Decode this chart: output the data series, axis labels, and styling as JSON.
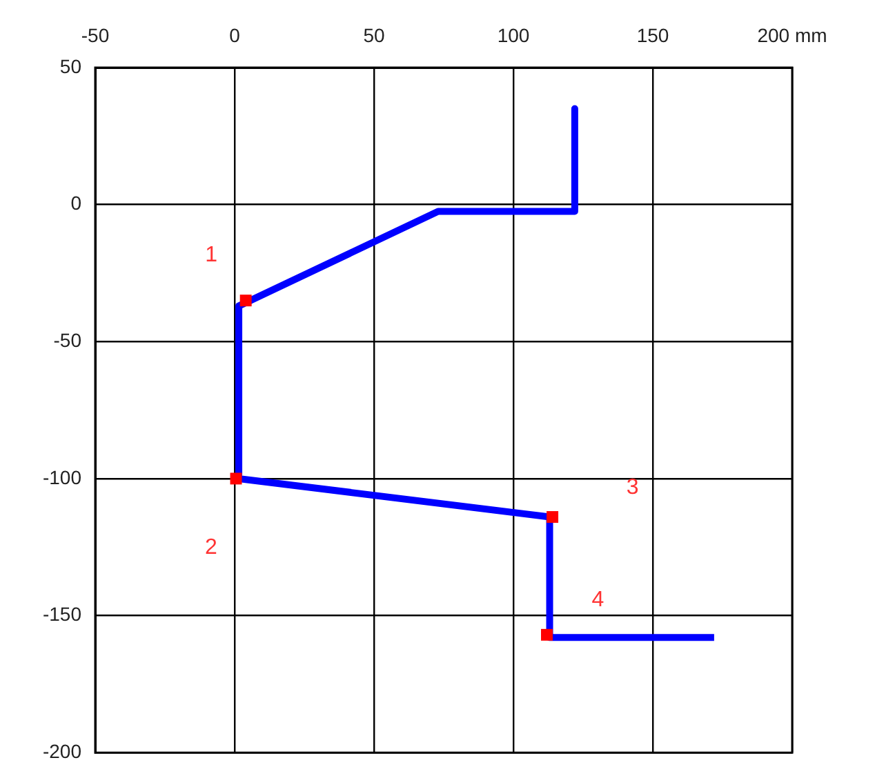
{
  "chart_data": {
    "type": "line",
    "x": [
      122,
      122,
      73,
      1.5,
      1.5,
      113,
      113,
      172
    ],
    "series": [
      {
        "color": "#0000ff",
        "marker": "none",
        "values": [
          35,
          -2.5,
          -2.5,
          -37,
          -100,
          -114,
          -158,
          -158
        ]
      },
      {
        "type": "scatter",
        "color": "#ff0000",
        "marker": "square",
        "x": [
          4,
          0.5,
          114,
          112
        ],
        "values": [
          -35,
          -100,
          -114,
          -157
        ]
      }
    ],
    "xlim": [
      -50,
      200
    ],
    "xticks": [
      -50,
      0,
      50,
      100,
      150,
      {
        "value": 200,
        "label": "200 mm"
      }
    ],
    "ylim": [
      -200,
      50
    ],
    "yticks": [
      -200,
      -150,
      -100,
      -50,
      0,
      50
    ],
    "grid": true,
    "legend": false,
    "annotations": [
      {
        "text": "1",
        "x": 4,
        "y": -35
      },
      {
        "text": "2",
        "x": 0.5,
        "y": -100
      },
      "3",
      {
        "text": "4",
        "x": 112,
        "y": -157
      }
    ]
  }
}
